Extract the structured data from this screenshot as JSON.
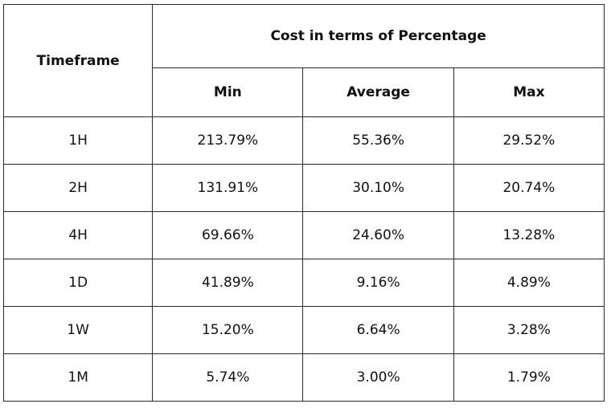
{
  "table": {
    "header": {
      "timeframe": "Timeframe",
      "group": "Cost in terms of Percentage",
      "columns": [
        "Min",
        "Average",
        "Max"
      ]
    },
    "rows": [
      {
        "timeframe": "1H",
        "min": "213.79%",
        "average": "55.36%",
        "max": "29.52%"
      },
      {
        "timeframe": "2H",
        "min": "131.91%",
        "average": "30.10%",
        "max": "20.74%"
      },
      {
        "timeframe": "4H",
        "min": "69.66%",
        "average": "24.60%",
        "max": "13.28%"
      },
      {
        "timeframe": "1D",
        "min": "41.89%",
        "average": "9.16%",
        "max": "4.89%"
      },
      {
        "timeframe": "1W",
        "min": "15.20%",
        "average": "6.64%",
        "max": "3.28%"
      },
      {
        "timeframe": "1M",
        "min": "5.74%",
        "average": "3.00%",
        "max": "1.79%"
      }
    ]
  }
}
